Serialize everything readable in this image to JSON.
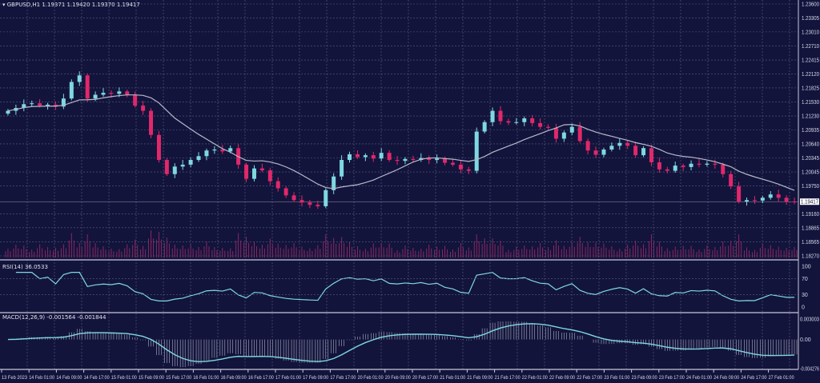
{
  "header": {
    "symbol": "GBPUSD,H1",
    "ohlc": "1.19371 1.19420 1.19370 1.19417"
  },
  "rsi": {
    "title": "RSI(14) 36.0533",
    "ticks": [
      "100",
      "70",
      "30",
      "0"
    ]
  },
  "macd": {
    "title": "MACD(12,26,9) -0.001564 -0.001844",
    "ticks": [
      "0.003003",
      "0.00",
      "-0.004276"
    ]
  },
  "colors": {
    "background": "#12143c",
    "bull": "#7fd8e0",
    "bear": "#e0286a",
    "ma": "#b8b8c8",
    "grid": "#5a5d80",
    "indicator": "#7fd8e0"
  },
  "chart_data": {
    "type": "candlestick",
    "price_ticks": [
      "1.23600",
      "1.23305",
      "1.23010",
      "1.22710",
      "1.22415",
      "1.22120",
      "1.21825",
      "1.21530",
      "1.21230",
      "1.20935",
      "1.20640",
      "1.20345",
      "1.20045",
      "1.19750",
      "1.19160",
      "1.18865",
      "1.18565",
      "1.18270"
    ],
    "current_price": "1.19417",
    "ylim": [
      1.1827,
      1.236
    ],
    "time_ticks": [
      "13 Feb 2023",
      "14 Feb 01:00",
      "14 Feb 09:00",
      "14 Feb 17:00",
      "15 Feb 01:00",
      "15 Feb 09:00",
      "15 Feb 17:00",
      "16 Feb 01:00",
      "16 Feb 09:00",
      "16 Feb 17:00",
      "17 Feb 01:00",
      "17 Feb 09:00",
      "17 Feb 17:00",
      "20 Feb 01:00",
      "20 Feb 09:00",
      "20 Feb 17:00",
      "21 Feb 01:00",
      "21 Feb 09:00",
      "21 Feb 17:00",
      "22 Feb 01:00",
      "22 Feb 09:00",
      "22 Feb 17:00",
      "23 Feb 01:00",
      "23 Feb 09:00",
      "23 Feb 17:00",
      "24 Feb 01:00",
      "24 Feb 09:00",
      "24 Feb 17:00",
      "27 Feb 01:00"
    ],
    "closes": [
      1.2134,
      1.214,
      1.2148,
      1.215,
      1.2145,
      1.2147,
      1.2143,
      1.216,
      1.2195,
      1.2209,
      1.216,
      1.2168,
      1.2172,
      1.217,
      1.2175,
      1.2168,
      1.2145,
      1.2134,
      1.2083,
      1.203,
      1.2,
      1.2016,
      1.202,
      1.203,
      1.2038,
      1.205,
      1.2052,
      1.2048,
      1.2055,
      1.202,
      1.199,
      1.2012,
      1.2008,
      1.1985,
      1.197,
      1.1955,
      1.1945,
      1.194,
      1.1935,
      1.1932,
      1.1966,
      1.1995,
      1.203,
      1.2042,
      1.2036,
      1.204,
      1.2033,
      1.2045,
      1.203,
      1.2028,
      1.2032,
      1.203,
      1.2034,
      1.203,
      1.2033,
      1.2024,
      1.202,
      1.201,
      1.2007,
      1.209,
      1.211,
      1.2134,
      1.2112,
      1.2109,
      1.211,
      1.2118,
      1.2108,
      1.21,
      1.2098,
      1.2075,
      1.2088,
      1.21,
      1.207,
      1.205,
      1.2041,
      1.2052,
      1.206,
      1.2066,
      1.206,
      1.204,
      1.2055,
      1.2025,
      1.201,
      1.2007,
      1.2018,
      1.2015,
      1.2022,
      1.202,
      1.2022,
      1.202,
      1.2,
      1.1974,
      1.1942,
      1.1945,
      1.1944,
      1.195,
      1.1957,
      1.195,
      1.1942,
      1.19417
    ],
    "rsi_ylim": [
      0,
      100
    ],
    "macd_ylim": [
      -0.004276,
      0.003003
    ],
    "grid": true
  }
}
